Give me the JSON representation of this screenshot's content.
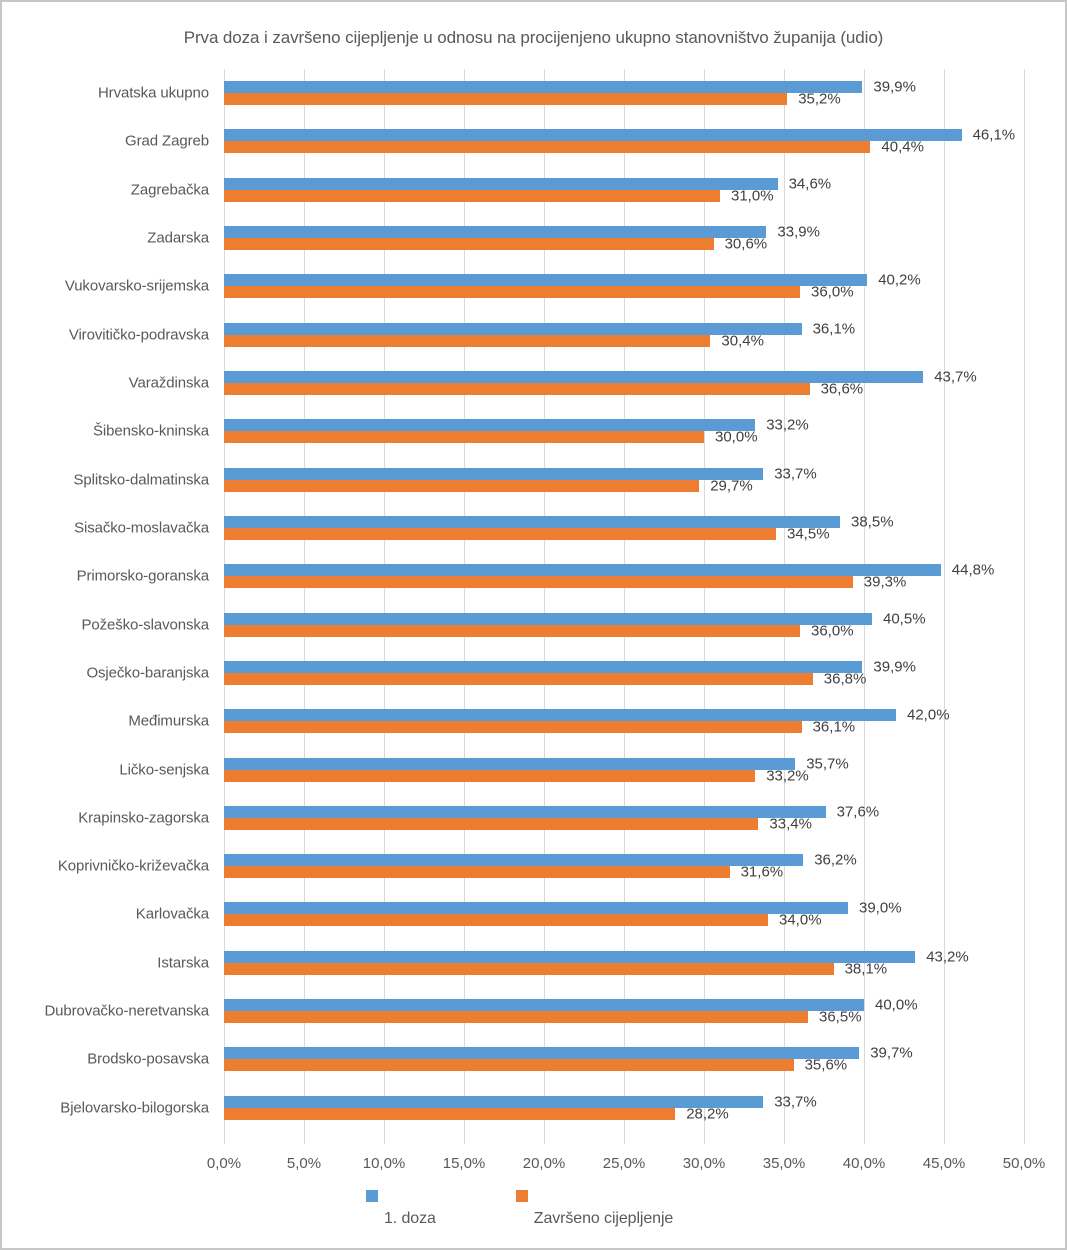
{
  "chart_data": {
    "type": "bar",
    "orientation": "horizontal",
    "title": "Prva doza i završeno cijepljenje u odnosu na procijenjeno ukupno stanovništvo županija (udio)",
    "categories": [
      "Hrvatska ukupno",
      "Grad Zagreb",
      "Zagrebačka",
      "Zadarska",
      "Vukovarsko-srijemska",
      "Virovitičko-podravska",
      "Varaždinska",
      "Šibensko-kninska",
      "Splitsko-dalmatinska",
      "Sisačko-moslavačka",
      "Primorsko-goranska",
      "Požeško-slavonska",
      "Osječko-baranjska",
      "Međimurska",
      "Ličko-senjska",
      "Krapinsko-zagorska",
      "Koprivničko-križevačka",
      "Karlovačka",
      "Istarska",
      "Dubrovačko-neretvanska",
      "Brodsko-posavska",
      "Bjelovarsko-bilogorska"
    ],
    "series": [
      {
        "name": "1. doza",
        "color": "#5B9BD5",
        "values": [
          39.9,
          46.1,
          34.6,
          33.9,
          40.2,
          36.1,
          43.7,
          33.2,
          33.7,
          38.5,
          44.8,
          40.5,
          39.9,
          42.0,
          35.7,
          37.6,
          36.2,
          39.0,
          43.2,
          40.0,
          39.7,
          33.7
        ]
      },
      {
        "name": "Završeno cijepljenje",
        "color": "#ED7D31",
        "values": [
          35.2,
          40.4,
          31.0,
          30.6,
          36.0,
          30.4,
          36.6,
          30.0,
          29.7,
          34.5,
          39.3,
          36.0,
          36.8,
          36.1,
          33.2,
          33.4,
          31.6,
          34.0,
          38.1,
          36.5,
          35.6,
          28.2
        ]
      }
    ],
    "xlim": [
      0,
      50
    ],
    "xticks": [
      "0,0%",
      "5,0%",
      "10,0%",
      "15,0%",
      "20,0%",
      "25,0%",
      "30,0%",
      "35,0%",
      "40,0%",
      "45,0%",
      "50,0%"
    ],
    "grid": true,
    "gridline_color": "#D9D9D9",
    "value_label_format": "comma-decimal-percent",
    "legend_position": "bottom"
  },
  "legend": {
    "first_dose_label": "1. doza",
    "completed_label": "Završeno cijepljenje"
  }
}
